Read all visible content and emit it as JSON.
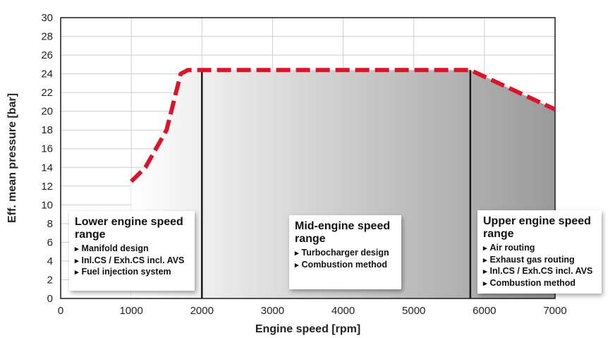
{
  "chart_data": {
    "type": "line",
    "xlabel": "Engine speed [rpm]",
    "ylabel": "Eff. mean pressure [bar]",
    "xlim": [
      0,
      7000
    ],
    "ylim": [
      0,
      30
    ],
    "x_ticks": [
      0,
      1000,
      2000,
      3000,
      4000,
      5000,
      6000,
      7000
    ],
    "y_ticks": [
      0,
      2,
      4,
      6,
      8,
      10,
      12,
      14,
      16,
      18,
      20,
      22,
      24,
      26,
      28,
      30
    ],
    "grid": true,
    "series": [
      {
        "x": [
          1000,
          1200,
          1500,
          1700,
          1800,
          5800,
          7000
        ],
        "y": [
          12.5,
          14.0,
          18.0,
          24.0,
          24.4,
          24.4,
          20.2
        ]
      }
    ],
    "range_dividers": [
      2000,
      5800
    ],
    "ranges": [
      {
        "title": "Lower engine speed range",
        "items": [
          "Manifold design",
          "Inl.CS / Exh.CS incl. AVS",
          "Fuel injection system"
        ]
      },
      {
        "title": "Mid-engine speed range",
        "items": [
          "Turbocharger design",
          "Combustion method"
        ]
      },
      {
        "title": "Upper engine speed range",
        "items": [
          "Air routing",
          "Exhaust gas routing",
          "Inl.CS / Exh.CS incl. AVS",
          "Combustion method"
        ]
      }
    ],
    "colors": {
      "curve": "#d9142b",
      "grid": "#cfcfcf",
      "divider": "#1a1a1a",
      "area_light": "#ffffff",
      "area_dark": "#9a9a9a"
    }
  }
}
